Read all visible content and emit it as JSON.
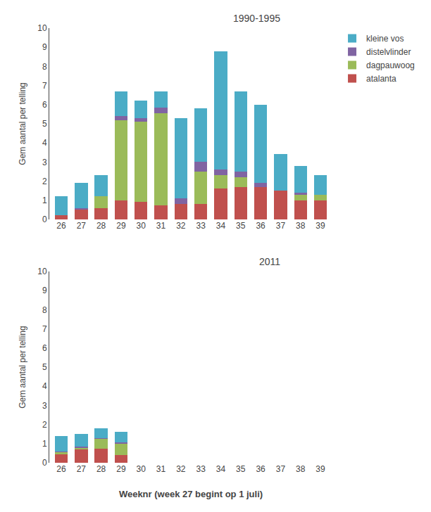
{
  "chart_data": [
    {
      "type": "bar",
      "stacked": true,
      "title": "1990-1995",
      "ylabel": "Gem aantal per telling",
      "categories": [
        "26",
        "27",
        "28",
        "29",
        "30",
        "31",
        "32",
        "33",
        "34",
        "35",
        "36",
        "37",
        "38",
        "39"
      ],
      "series": [
        {
          "name": "atalanta",
          "color": "#C0504D",
          "values": [
            0.2,
            0.5,
            0.6,
            1.0,
            0.9,
            0.75,
            0.8,
            0.8,
            1.6,
            1.7,
            1.7,
            1.5,
            1.0,
            1.0
          ]
        },
        {
          "name": "dagpauwoog",
          "color": "#9BBB59",
          "values": [
            0.0,
            0.0,
            0.6,
            4.2,
            4.2,
            4.8,
            0.0,
            1.7,
            0.7,
            0.5,
            0.0,
            0.0,
            0.3,
            0.3
          ]
        },
        {
          "name": "distelvlinder",
          "color": "#8064A2",
          "values": [
            0.0,
            0.1,
            0.0,
            0.2,
            0.2,
            0.3,
            0.3,
            0.5,
            0.3,
            0.3,
            0.2,
            0.0,
            0.1,
            0.0
          ]
        },
        {
          "name": "kleine vos",
          "color": "#4BACC6",
          "values": [
            1.0,
            1.3,
            1.1,
            1.3,
            0.9,
            0.85,
            4.2,
            2.8,
            6.2,
            4.2,
            4.1,
            1.9,
            1.4,
            1.0
          ]
        }
      ],
      "ylim": [
        0,
        10
      ],
      "yticks": [
        0,
        1,
        2,
        3,
        4,
        5,
        6,
        7,
        8,
        9,
        10
      ],
      "grid": false,
      "legend": "right"
    },
    {
      "type": "bar",
      "stacked": true,
      "title": "2011",
      "ylabel": "Gem aantal per telling",
      "xlabel": "Weeknr (week 27 begint op 1 juli)",
      "categories": [
        "26",
        "27",
        "28",
        "29",
        "30",
        "31",
        "32",
        "33",
        "34",
        "35",
        "36",
        "37",
        "38",
        "39"
      ],
      "series": [
        {
          "name": "atalanta",
          "color": "#C0504D",
          "values": [
            0.45,
            0.7,
            0.75,
            0.4,
            0.0,
            0.0,
            0.0,
            0.0,
            0.0,
            0.0,
            0.0,
            0.0,
            0.0,
            0.0
          ]
        },
        {
          "name": "dagpauwoog",
          "color": "#9BBB59",
          "values": [
            0.1,
            0.1,
            0.5,
            0.6,
            0.0,
            0.0,
            0.0,
            0.0,
            0.0,
            0.0,
            0.0,
            0.0,
            0.0,
            0.0
          ]
        },
        {
          "name": "distelvlinder",
          "color": "#8064A2",
          "values": [
            0.05,
            0.05,
            0.05,
            0.05,
            0.0,
            0.0,
            0.0,
            0.0,
            0.0,
            0.0,
            0.0,
            0.0,
            0.0,
            0.0
          ]
        },
        {
          "name": "kleine vos",
          "color": "#4BACC6",
          "values": [
            0.8,
            0.65,
            0.5,
            0.55,
            0.0,
            0.0,
            0.0,
            0.0,
            0.0,
            0.0,
            0.0,
            0.0,
            0.0,
            0.0
          ]
        }
      ],
      "ylim": [
        0,
        10
      ],
      "yticks": [
        0,
        1,
        2,
        3,
        4,
        5,
        6,
        7,
        8,
        9,
        10
      ],
      "grid": false
    }
  ]
}
